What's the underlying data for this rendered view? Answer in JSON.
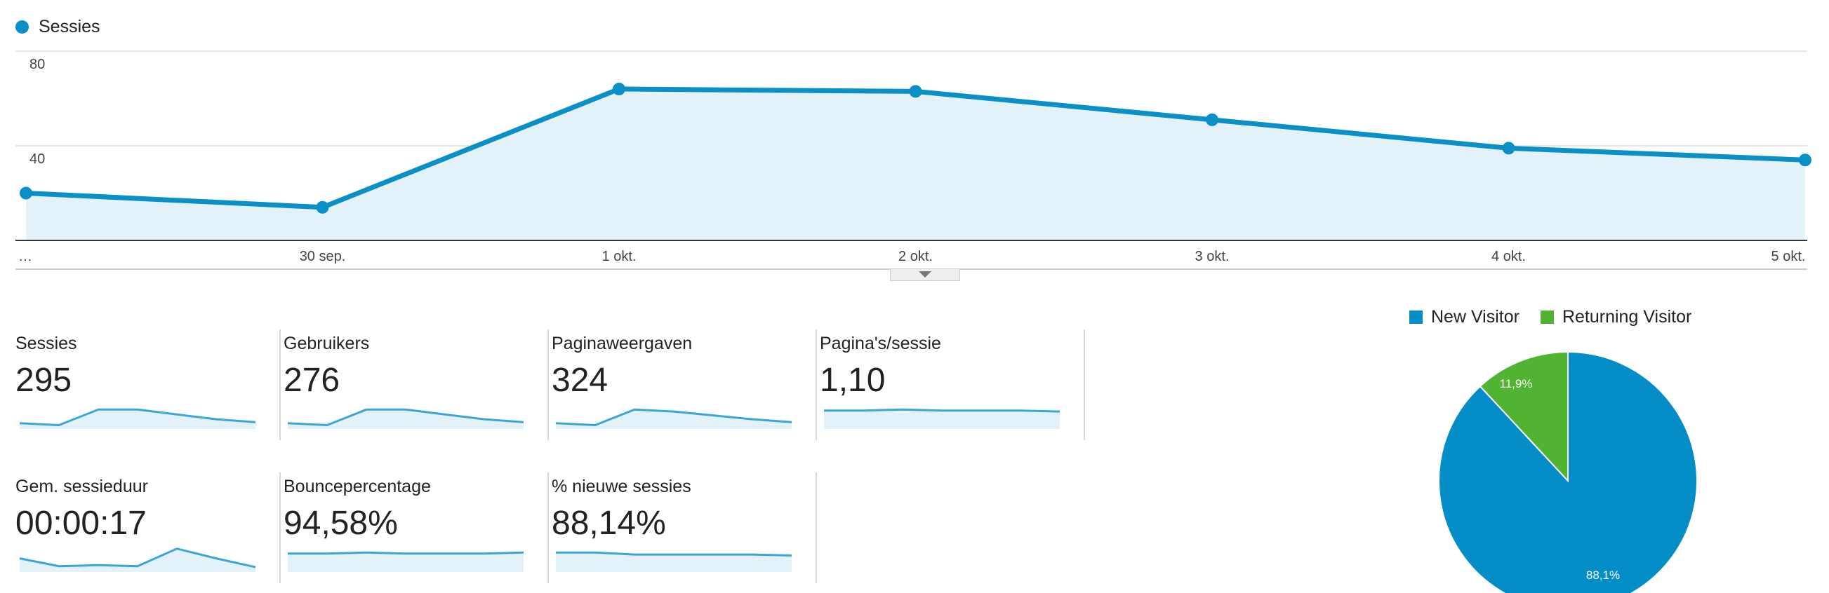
{
  "colors": {
    "series": "#0a8fc7",
    "fill": "#e3f2f9",
    "new_visitor": "#058dc7",
    "returning_visitor": "#50b432"
  },
  "legend": {
    "label": "Sessies"
  },
  "chart_data": [
    {
      "type": "area",
      "series": [
        {
          "name": "Sessies",
          "values": [
            20,
            14,
            64,
            63,
            51,
            39,
            34
          ]
        }
      ],
      "x": [
        "…",
        "30 sep.",
        "1 okt.",
        "2 okt.",
        "3 okt.",
        "4 okt.",
        "5 okt."
      ],
      "y_ticks": [
        "80",
        "40"
      ],
      "ylim": [
        0,
        80
      ],
      "grid": true
    },
    {
      "type": "pie",
      "labels": [
        "New Visitor",
        "Returning Visitor"
      ],
      "values": [
        88.1,
        11.9
      ],
      "data_labels": [
        "88,1%",
        "11,9%"
      ]
    }
  ],
  "toggle": {
    "icon": "caret-down-icon"
  },
  "metrics": [
    {
      "title": "Sessies",
      "value": "295",
      "spark": [
        6,
        4,
        20,
        20,
        15,
        10,
        7
      ]
    },
    {
      "title": "Gebruikers",
      "value": "276",
      "spark": [
        6,
        4,
        20,
        20,
        15,
        10,
        7
      ]
    },
    {
      "title": "Paginaweergaven",
      "value": "324",
      "spark": [
        6,
        4,
        20,
        18,
        14,
        10,
        7
      ]
    },
    {
      "title": "Pagina's/sessie",
      "value": "1,10",
      "spark": [
        19,
        19,
        20,
        19,
        19,
        19,
        18
      ]
    },
    {
      "title": "Gem. sessieduur",
      "value": "00:00:17",
      "spark": [
        14,
        6,
        7,
        6,
        24,
        14,
        5
      ]
    },
    {
      "title": "Bouncepercentage",
      "value": "94,58%",
      "spark": [
        19,
        19,
        20,
        19,
        19,
        19,
        20
      ]
    },
    {
      "title": "% nieuwe sessies",
      "value": "88,14%",
      "spark": [
        20,
        20,
        18,
        18,
        18,
        18,
        17
      ]
    }
  ]
}
